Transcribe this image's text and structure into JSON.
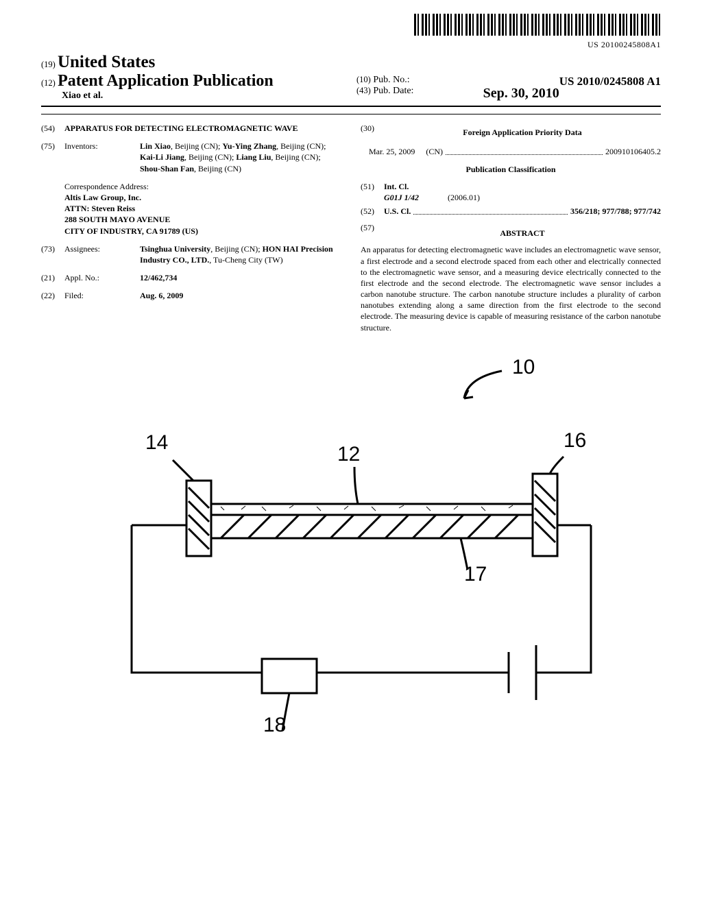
{
  "barcode_text": "US 20100245808A1",
  "header": {
    "country_prefix": "(19)",
    "country": "United States",
    "pub_type_prefix": "(12)",
    "pub_type": "Patent Application Publication",
    "author_line": "Xiao et al.",
    "pub_no_prefix": "(10)",
    "pub_no_label": "Pub. No.:",
    "pub_no": "US 2010/0245808 A1",
    "pub_date_prefix": "(43)",
    "pub_date_label": "Pub. Date:",
    "pub_date": "Sep. 30, 2010"
  },
  "left": {
    "title_num": "(54)",
    "title": "APPARATUS FOR DETECTING ELECTROMAGNETIC WAVE",
    "inv_num": "(75)",
    "inv_label": "Inventors:",
    "inventors": "Lin Xiao, Beijing (CN); Yu-Ying Zhang, Beijing (CN); Kai-Li Jiang, Beijing (CN); Liang Liu, Beijing (CN); Shou-Shan Fan, Beijing (CN)",
    "inv_bold": [
      "Lin Xiao",
      "Yu-Ying Zhang",
      "Kai-Li Jiang",
      "Liang Liu",
      "Shou-Shan Fan"
    ],
    "corr_label": "Correspondence Address:",
    "corr_l1": "Altis Law Group, Inc.",
    "corr_l2": "ATTN: Steven Reiss",
    "corr_l3": "288 SOUTH MAYO AVENUE",
    "corr_l4": "CITY OF INDUSTRY, CA 91789 (US)",
    "asg_num": "(73)",
    "asg_label": "Assignees:",
    "assignees": "Tsinghua University, Beijing (CN); HON HAI Precision Industry CO., LTD., Tu-Cheng City (TW)",
    "asg_bold": [
      "Tsinghua University",
      "HON HAI Precision Industry CO., LTD."
    ],
    "appl_num": "(21)",
    "appl_label": "Appl. No.:",
    "appl_val": "12/462,734",
    "filed_num": "(22)",
    "filed_label": "Filed:",
    "filed_val": "Aug. 6, 2009"
  },
  "right": {
    "fap_num": "(30)",
    "fap_head": "Foreign Application Priority Data",
    "fap_date": "Mar. 25, 2009",
    "fap_cc": "(CN)",
    "fap_app": "200910106405.2",
    "pubclass_head": "Publication Classification",
    "intcl_num": "(51)",
    "intcl_label": "Int. Cl.",
    "intcl_code": "G01J 1/42",
    "intcl_ver": "(2006.01)",
    "uscl_num": "(52)",
    "uscl_label": "U.S. Cl.",
    "uscl_val": "356/218; 977/788; 977/742",
    "abs_num": "(57)",
    "abs_head": "ABSTRACT",
    "abstract": "An apparatus for detecting electromagnetic wave includes an electromagnetic wave sensor, a first electrode and a second electrode spaced from each other and electrically connected to the electromagnetic wave sensor, and a measuring device electrically connected to the first electrode and the second electrode. The electromagnetic wave sensor includes a carbon nanotube structure. The carbon nanotube structure includes a plurality of carbon nanotubes extending along a same direction from the first electrode to the second electrode. The measuring device is capable of measuring resistance of the carbon nanotube structure."
  },
  "figure": {
    "labels": {
      "n10": "10",
      "n12": "12",
      "n14": "14",
      "n16": "16",
      "n17": "17",
      "n18": "18"
    }
  },
  "colors": {
    "text": "#000000",
    "bg": "#ffffff"
  }
}
